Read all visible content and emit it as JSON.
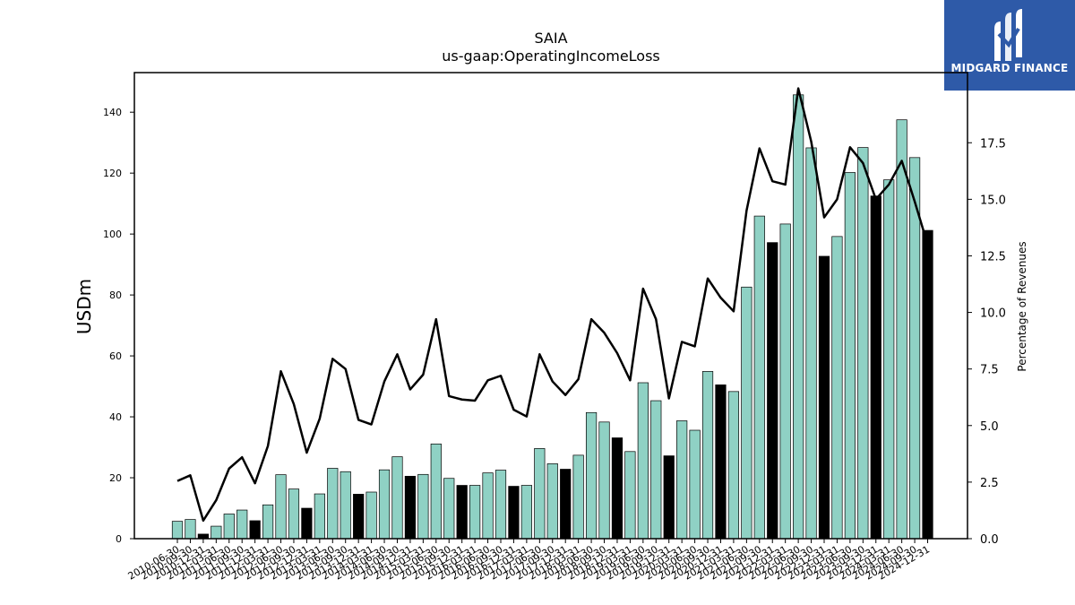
{
  "logo": {
    "name": "MIDGARD FINANCE"
  },
  "colors": {
    "bar_default": "#8fd1c4",
    "bar_highlight": "#000000",
    "line": "#000000",
    "logo_bg": "#2e5aa8"
  },
  "chart_data": {
    "type": "bar",
    "title": "SAIA",
    "subtitle": "us-gaap:OperatingIncomeLoss",
    "ylabel": "USDm",
    "y2label": "Percentage of Revenues",
    "ylim": [
      0,
      153
    ],
    "y2lim": [
      0,
      20.6
    ],
    "yticks": [
      0,
      20,
      40,
      60,
      80,
      100,
      120,
      140
    ],
    "y2ticks": [
      "0.0",
      "2.5",
      "5.0",
      "7.5",
      "10.0",
      "12.5",
      "15.0",
      "17.5"
    ],
    "categories": [
      "2010-06-30",
      "2010-09-30",
      "2010-12-31",
      "2011-03-31",
      "2011-06-30",
      "2011-09-30",
      "2011-12-31",
      "2012-03-31",
      "2012-06-30",
      "2012-09-30",
      "2012-12-31",
      "2013-03-31",
      "2013-06-30",
      "2013-09-30",
      "2013-12-31",
      "2014-03-31",
      "2014-06-30",
      "2014-09-30",
      "2014-12-31",
      "2015-03-31",
      "2015-06-30",
      "2015-09-30",
      "2015-12-31",
      "2016-03-31",
      "2016-06-30",
      "2016-09-30",
      "2016-12-31",
      "2017-03-31",
      "2017-06-30",
      "2017-09-30",
      "2017-12-31",
      "2018-03-31",
      "2018-06-30",
      "2018-09-30",
      "2018-12-31",
      "2019-03-31",
      "2019-06-30",
      "2019-09-30",
      "2019-12-31",
      "2020-03-31",
      "2020-06-30",
      "2020-09-30",
      "2020-12-31",
      "2021-03-31",
      "2021-06-30",
      "2021-09-30",
      "2021-12-31",
      "2022-03-31",
      "2022-06-30",
      "2022-09-30",
      "2022-12-31",
      "2023-03-31",
      "2023-06-30",
      "2023-09-30",
      "2023-12-31",
      "2024-03-31",
      "2024-06-30",
      "2024-09-30",
      "2024-12-31"
    ],
    "series": [
      {
        "type": "bar",
        "values": [
          5.7,
          6.3,
          1.5,
          4.1,
          8.1,
          9.4,
          5.9,
          11.1,
          21.0,
          16.3,
          10.0,
          14.7,
          23.1,
          22.0,
          14.6,
          15.3,
          22.6,
          26.9,
          20.5,
          21.1,
          31.1,
          19.8,
          17.5,
          17.5,
          21.6,
          22.5,
          17.2,
          17.5,
          29.6,
          24.6,
          22.8,
          27.4,
          41.4,
          38.3,
          33.1,
          28.6,
          51.2,
          45.3,
          27.2,
          38.7,
          35.6,
          54.9,
          50.5,
          48.3,
          82.6,
          105.9,
          97.2,
          103.3,
          145.7,
          128.3,
          92.7,
          99.2,
          120.2,
          128.4,
          112.5,
          117.8,
          137.5,
          125.1,
          101.2
        ],
        "highlight": [
          false,
          false,
          true,
          false,
          false,
          false,
          true,
          false,
          false,
          false,
          true,
          false,
          false,
          false,
          true,
          false,
          false,
          false,
          true,
          false,
          false,
          false,
          true,
          false,
          false,
          false,
          true,
          false,
          false,
          false,
          true,
          false,
          false,
          false,
          true,
          false,
          false,
          false,
          true,
          false,
          false,
          false,
          true,
          false,
          false,
          false,
          true,
          false,
          false,
          false,
          true,
          false,
          false,
          false,
          true,
          false,
          false,
          false,
          true
        ]
      },
      {
        "type": "line",
        "axis": "right",
        "values": [
          2.55,
          2.8,
          0.8,
          1.7,
          3.1,
          3.6,
          2.45,
          4.1,
          7.4,
          5.95,
          3.8,
          5.3,
          7.95,
          7.5,
          5.25,
          5.05,
          6.95,
          8.15,
          6.6,
          7.25,
          9.7,
          6.3,
          6.15,
          6.1,
          7.0,
          7.2,
          5.7,
          5.4,
          8.15,
          6.95,
          6.35,
          7.05,
          9.7,
          9.1,
          8.2,
          7.0,
          11.05,
          9.7,
          6.2,
          8.7,
          8.5,
          11.5,
          10.65,
          10.05,
          14.5,
          17.25,
          15.8,
          15.65,
          19.9,
          17.55,
          14.2,
          15.0,
          17.3,
          16.6,
          15.0,
          15.65,
          16.7,
          14.9,
          13.0
        ]
      }
    ]
  }
}
